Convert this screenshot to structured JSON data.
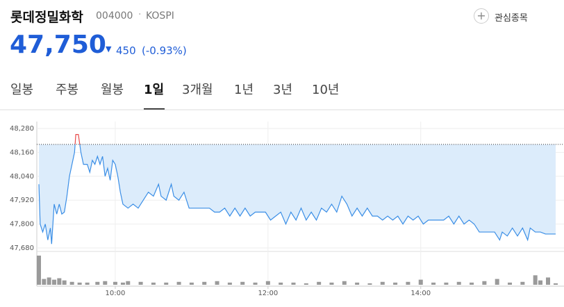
{
  "header": {
    "title": "롯데정밀화학",
    "code": "004000",
    "market": "KOSPI",
    "price": "47,750",
    "change": "450",
    "change_pct": "(-0.93%)",
    "watch_button": "관심종목"
  },
  "tabs": {
    "items": [
      "일봉",
      "주봉",
      "월봉",
      "1일",
      "3개월",
      "1년",
      "3년",
      "10년"
    ],
    "active": 3
  },
  "chart_data": {
    "type": "line",
    "color": "#3a8ee6",
    "above_color": "#e84a4a",
    "fill_color": "#dcecfb",
    "reference_line": 48200,
    "x": [
      "09:00",
      "09:01",
      "09:03",
      "09:05",
      "09:07",
      "09:09",
      "09:10",
      "09:12",
      "09:14",
      "09:16",
      "09:18",
      "09:20",
      "09:22",
      "09:24",
      "09:26",
      "09:28",
      "09:29",
      "09:31",
      "09:33",
      "09:35",
      "09:38",
      "09:40",
      "09:42",
      "09:44",
      "09:46",
      "09:48",
      "09:50",
      "09:52",
      "09:54",
      "09:56",
      "09:58",
      "10:00",
      "10:02",
      "10:04",
      "10:06",
      "10:10",
      "10:14",
      "10:18",
      "10:22",
      "10:26",
      "10:30",
      "10:34",
      "10:36",
      "10:40",
      "10:44",
      "10:46",
      "10:50",
      "10:54",
      "10:58",
      "11:02",
      "11:06",
      "11:10",
      "11:14",
      "11:18",
      "11:22",
      "11:26",
      "11:30",
      "11:34",
      "11:38",
      "11:42",
      "11:46",
      "11:50",
      "11:54",
      "11:58",
      "12:02",
      "12:06",
      "12:10",
      "12:14",
      "12:18",
      "12:22",
      "12:26",
      "12:30",
      "12:34",
      "12:38",
      "12:42",
      "12:46",
      "12:50",
      "12:54",
      "12:58",
      "13:02",
      "13:06",
      "13:10",
      "13:14",
      "13:18",
      "13:22",
      "13:26",
      "13:30",
      "13:34",
      "13:38",
      "13:42",
      "13:46",
      "13:50",
      "13:54",
      "13:58",
      "14:02",
      "14:06",
      "14:10",
      "14:14",
      "14:18",
      "14:22",
      "14:26",
      "14:30",
      "14:34",
      "14:38",
      "14:42",
      "14:46",
      "14:50",
      "14:54",
      "14:58",
      "15:02",
      "15:04",
      "15:08",
      "15:12",
      "15:16",
      "15:20",
      "15:24",
      "15:26",
      "15:30",
      "15:34",
      "15:38",
      "15:46"
    ],
    "values": [
      48000,
      47800,
      47760,
      47800,
      47720,
      47780,
      47700,
      47900,
      47850,
      47900,
      47850,
      47860,
      47940,
      48040,
      48100,
      48160,
      48250,
      48250,
      48160,
      48100,
      48100,
      48060,
      48120,
      48100,
      48140,
      48100,
      48140,
      48040,
      48080,
      48020,
      48120,
      48100,
      48040,
      47960,
      47900,
      47880,
      47900,
      47880,
      47920,
      47960,
      47940,
      48000,
      47940,
      47920,
      48000,
      47940,
      47920,
      47960,
      47880,
      47880,
      47880,
      47880,
      47880,
      47860,
      47860,
      47880,
      47840,
      47880,
      47840,
      47880,
      47840,
      47860,
      47860,
      47860,
      47820,
      47840,
      47860,
      47800,
      47860,
      47820,
      47880,
      47820,
      47860,
      47820,
      47880,
      47860,
      47900,
      47860,
      47940,
      47900,
      47840,
      47880,
      47840,
      47880,
      47840,
      47840,
      47820,
      47840,
      47820,
      47840,
      47800,
      47840,
      47820,
      47840,
      47800,
      47820,
      47820,
      47820,
      47820,
      47840,
      47800,
      47840,
      47800,
      47820,
      47800,
      47760,
      47760,
      47760,
      47760,
      47720,
      47760,
      47740,
      47780,
      47740,
      47780,
      47720,
      47780,
      47760,
      47760,
      47750,
      47750
    ],
    "xlim": [
      "09:00",
      "15:46"
    ],
    "xticks": [
      "10:00",
      "12:00",
      "14:00"
    ],
    "ylim": [
      47680,
      48280
    ],
    "yticks": [
      {
        "value": 48280,
        "label": "48,280"
      },
      {
        "value": 48160,
        "label": "48,160"
      },
      {
        "value": 48040,
        "label": "48,040"
      },
      {
        "value": 47920,
        "label": "47,920"
      },
      {
        "value": 47800,
        "label": "47,800"
      },
      {
        "value": 47680,
        "label": "47,680"
      }
    ],
    "grid": true,
    "volume": {
      "color": "#9a9a9a",
      "x": [
        "09:00",
        "09:04",
        "09:08",
        "09:12",
        "09:16",
        "09:20",
        "09:26",
        "09:32",
        "09:38",
        "09:46",
        "09:52",
        "10:00",
        "10:06",
        "10:10",
        "10:20",
        "10:30",
        "10:40",
        "10:50",
        "11:00",
        "11:10",
        "11:20",
        "11:30",
        "11:40",
        "11:50",
        "12:00",
        "12:10",
        "12:20",
        "12:30",
        "12:40",
        "12:50",
        "13:00",
        "13:10",
        "13:20",
        "13:30",
        "13:40",
        "13:50",
        "14:00",
        "14:10",
        "14:20",
        "14:30",
        "14:40",
        "14:50",
        "15:00",
        "15:10",
        "15:20",
        "15:30",
        "15:34",
        "15:40",
        "15:46"
      ],
      "values": [
        40,
        8,
        10,
        7,
        9,
        6,
        4,
        3,
        3,
        4,
        5,
        4,
        3,
        5,
        4,
        3,
        3,
        4,
        3,
        4,
        5,
        3,
        4,
        3,
        5,
        3,
        3,
        2,
        4,
        3,
        5,
        3,
        2,
        4,
        3,
        4,
        7,
        3,
        3,
        4,
        3,
        5,
        8,
        3,
        4,
        13,
        6,
        10,
        2
      ]
    }
  }
}
